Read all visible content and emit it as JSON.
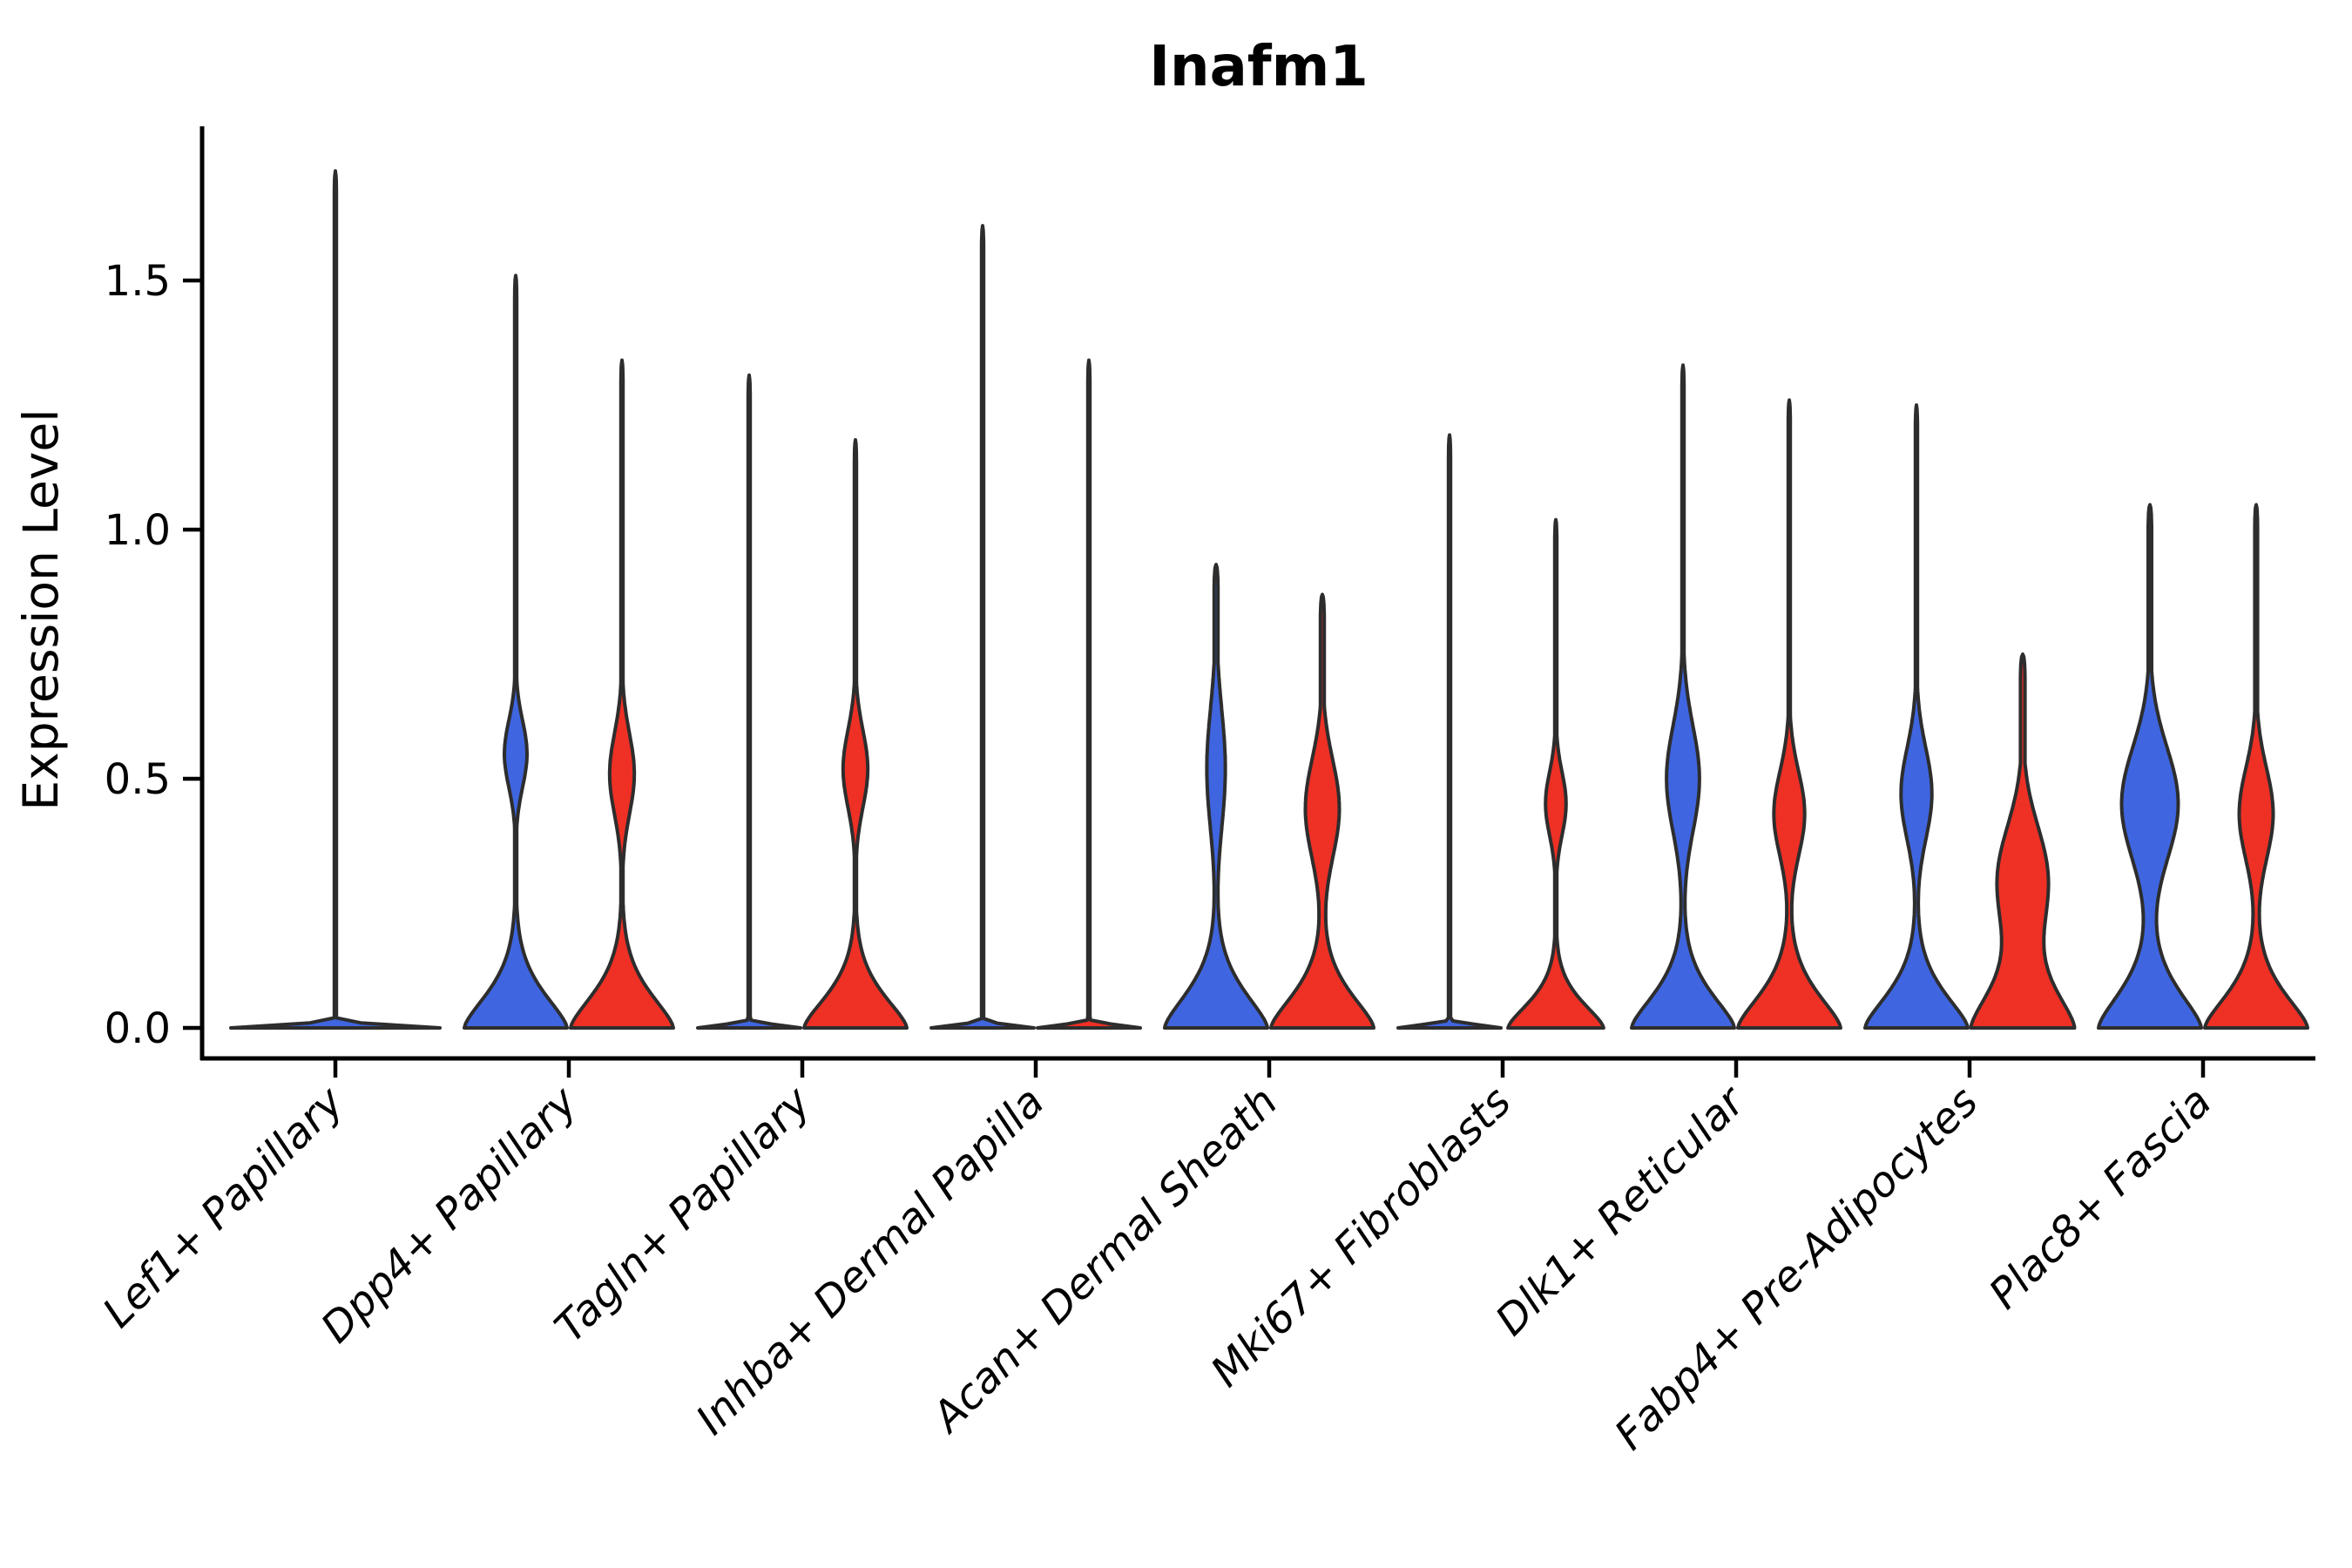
{
  "title": "Inafm1",
  "y_axis": {
    "label": "Expression Level",
    "tick_labels": [
      "0.0",
      "0.5",
      "1.0",
      "1.5"
    ]
  },
  "chart_data": {
    "type": "violin",
    "variant": "grouped-split-violin",
    "title": "Inafm1",
    "xlabel": "",
    "ylabel": "Expression Level",
    "ylim": [
      -0.061,
      1.809
    ],
    "yticks": [
      0.0,
      0.5,
      1.0,
      1.5
    ],
    "grid": false,
    "legend_position": "none",
    "colors": {
      "group_blue": "#3F66E0",
      "group_red": "#EE3025",
      "violin_outline": "#2D2D2D",
      "axis": "#000000"
    },
    "categories": [
      "Lef1+ Papillary",
      "Dpp4+ Papillary",
      "Tagln+ Papillary",
      "Inhba+ Dermal Papilla",
      "Acan+ Dermal Sheath",
      "Mki67+ Fibroblasts",
      "Dlk1+ Reticular",
      "Fabp4+ Pre-Adipocytes",
      "Plac8+ Fascia"
    ],
    "groups": [
      {
        "name": "group-blue",
        "color": "#3F66E0"
      },
      {
        "name": "group-red",
        "color": "#EE3025"
      }
    ],
    "violins": [
      {
        "category": "Lef1+ Papillary",
        "group": 0,
        "align": "center",
        "width_units": 2,
        "peak_expression": 1.72,
        "profile": {
          "base": {
            "amp": 1,
            "sigma": 0.0085,
            "pow": 2
          },
          "bulge": null,
          "spike": {
            "top": 1.72,
            "hw": 1.2
          }
        }
      },
      {
        "category": "Dpp4+ Papillary",
        "group": 0,
        "align": "left",
        "width_units": 1,
        "peak_expression": 1.51,
        "profile": {
          "base": {
            "amp": 1,
            "sigma": 0.1,
            "pow": 1.5
          },
          "bulge": {
            "center": 0.55,
            "sigma": 0.095,
            "amp": 0.22
          },
          "spike": {
            "top": 1.51,
            "hw": 1.2
          }
        }
      },
      {
        "category": "Dpp4+ Papillary",
        "group": 1,
        "align": "right",
        "width_units": 1,
        "peak_expression": 1.34,
        "profile": {
          "base": {
            "amp": 1,
            "sigma": 0.1,
            "pow": 1.5
          },
          "bulge": {
            "center": 0.51,
            "sigma": 0.115,
            "amp": 0.24
          },
          "spike": {
            "top": 1.34,
            "hw": 1.2
          }
        }
      },
      {
        "category": "Tagln+ Papillary",
        "group": 0,
        "align": "left",
        "width_units": 1,
        "peak_expression": 1.31,
        "profile": {
          "base": {
            "amp": 1,
            "sigma": 0.0085,
            "pow": 2
          },
          "bulge": null,
          "spike": {
            "top": 1.31,
            "hw": 1.2
          }
        }
      },
      {
        "category": "Tagln+ Papillary",
        "group": 1,
        "align": "right",
        "width_units": 1,
        "peak_expression": 1.18,
        "profile": {
          "base": {
            "amp": 1,
            "sigma": 0.095,
            "pow": 1.5
          },
          "bulge": {
            "center": 0.52,
            "sigma": 0.11,
            "amp": 0.24
          },
          "spike": {
            "top": 1.18,
            "hw": 1.2
          }
        }
      },
      {
        "category": "Inhba+ Dermal Papilla",
        "group": 0,
        "align": "left",
        "width_units": 1,
        "peak_expression": 1.61,
        "profile": {
          "base": {
            "amp": 1,
            "sigma": 0.0085,
            "pow": 2
          },
          "bulge": null,
          "spike": {
            "top": 1.61,
            "hw": 1.2
          }
        }
      },
      {
        "category": "Inhba+ Dermal Papilla",
        "group": 1,
        "align": "right",
        "width_units": 1,
        "peak_expression": 1.34,
        "profile": {
          "base": {
            "amp": 1,
            "sigma": 0.0085,
            "pow": 2
          },
          "bulge": null,
          "spike": {
            "top": 1.34,
            "hw": 1.2
          }
        }
      },
      {
        "category": "Acan+ Dermal Sheath",
        "group": 0,
        "align": "left",
        "width_units": 1,
        "peak_expression": 0.93,
        "profile": {
          "base": {
            "amp": 1,
            "sigma": 0.105,
            "pow": 1.5
          },
          "bulge": {
            "center": 0.52,
            "sigma": 0.17,
            "amp": 0.18
          },
          "spike": {
            "top": 0.93,
            "hw": 2.2
          }
        }
      },
      {
        "category": "Acan+ Dermal Sheath",
        "group": 1,
        "align": "right",
        "width_units": 1,
        "peak_expression": 0.87,
        "profile": {
          "base": {
            "amp": 1,
            "sigma": 0.1,
            "pow": 1.5
          },
          "bulge": {
            "center": 0.44,
            "sigma": 0.14,
            "amp": 0.33
          },
          "spike": {
            "top": 0.87,
            "hw": 2.2
          }
        }
      },
      {
        "category": "Mki67+ Fibroblasts",
        "group": 0,
        "align": "left",
        "width_units": 1,
        "peak_expression": 1.19,
        "profile": {
          "base": {
            "amp": 1,
            "sigma": 0.0085,
            "pow": 2
          },
          "bulge": null,
          "spike": {
            "top": 1.19,
            "hw": 1.2
          }
        }
      },
      {
        "category": "Mki67+ Fibroblasts",
        "group": 1,
        "align": "right",
        "width_units": 1,
        "peak_expression": 1.02,
        "profile": {
          "base": {
            "amp": 0.93,
            "sigma": 0.075,
            "pow": 1.5
          },
          "bulge": {
            "center": 0.45,
            "sigma": 0.09,
            "amp": 0.2
          },
          "spike": {
            "top": 1.02,
            "hw": 1.2
          }
        }
      },
      {
        "category": "Dlk1+ Reticular",
        "group": 0,
        "align": "left",
        "width_units": 1,
        "peak_expression": 1.33,
        "profile": {
          "base": {
            "amp": 1,
            "sigma": 0.1,
            "pow": 1.5
          },
          "bulge": {
            "center": 0.5,
            "sigma": 0.15,
            "amp": 0.32
          },
          "spike": {
            "top": 1.33,
            "hw": 1.2
          }
        }
      },
      {
        "category": "Dlk1+ Reticular",
        "group": 1,
        "align": "right",
        "width_units": 1,
        "peak_expression": 1.26,
        "profile": {
          "base": {
            "amp": 1,
            "sigma": 0.1,
            "pow": 1.5
          },
          "bulge": {
            "center": 0.43,
            "sigma": 0.12,
            "amp": 0.3
          },
          "spike": {
            "top": 1.26,
            "hw": 1.2
          }
        }
      },
      {
        "category": "Fabp4+ Pre-Adipocytes",
        "group": 0,
        "align": "left",
        "width_units": 1,
        "peak_expression": 1.25,
        "profile": {
          "base": {
            "amp": 1,
            "sigma": 0.1,
            "pow": 1.5
          },
          "bulge": {
            "center": 0.47,
            "sigma": 0.13,
            "amp": 0.3
          },
          "spike": {
            "top": 1.25,
            "hw": 1.2
          }
        }
      },
      {
        "category": "Fabp4+ Pre-Adipocytes",
        "group": 1,
        "align": "right",
        "width_units": 1,
        "peak_expression": 0.75,
        "profile": {
          "base": {
            "amp": 1,
            "sigma": 0.12,
            "pow": 1.5
          },
          "bulge": {
            "center": 0.3,
            "sigma": 0.15,
            "amp": 0.48
          },
          "spike": {
            "top": 0.75,
            "hw": 2.6
          }
        }
      },
      {
        "category": "Plac8+ Fascia",
        "group": 0,
        "align": "left",
        "width_units": 1,
        "peak_expression": 1.05,
        "profile": {
          "base": {
            "amp": 1,
            "sigma": 0.11,
            "pow": 1.5
          },
          "bulge": {
            "center": 0.45,
            "sigma": 0.16,
            "amp": 0.55
          },
          "spike": {
            "top": 1.05,
            "hw": 2.0
          }
        }
      },
      {
        "category": "Plac8+ Fascia",
        "group": 1,
        "align": "right",
        "width_units": 1,
        "peak_expression": 1.05,
        "profile": {
          "base": {
            "amp": 1,
            "sigma": 0.1,
            "pow": 1.5
          },
          "bulge": {
            "center": 0.43,
            "sigma": 0.13,
            "amp": 0.33
          },
          "spike": {
            "top": 1.05,
            "hw": 1.6
          }
        }
      }
    ]
  }
}
